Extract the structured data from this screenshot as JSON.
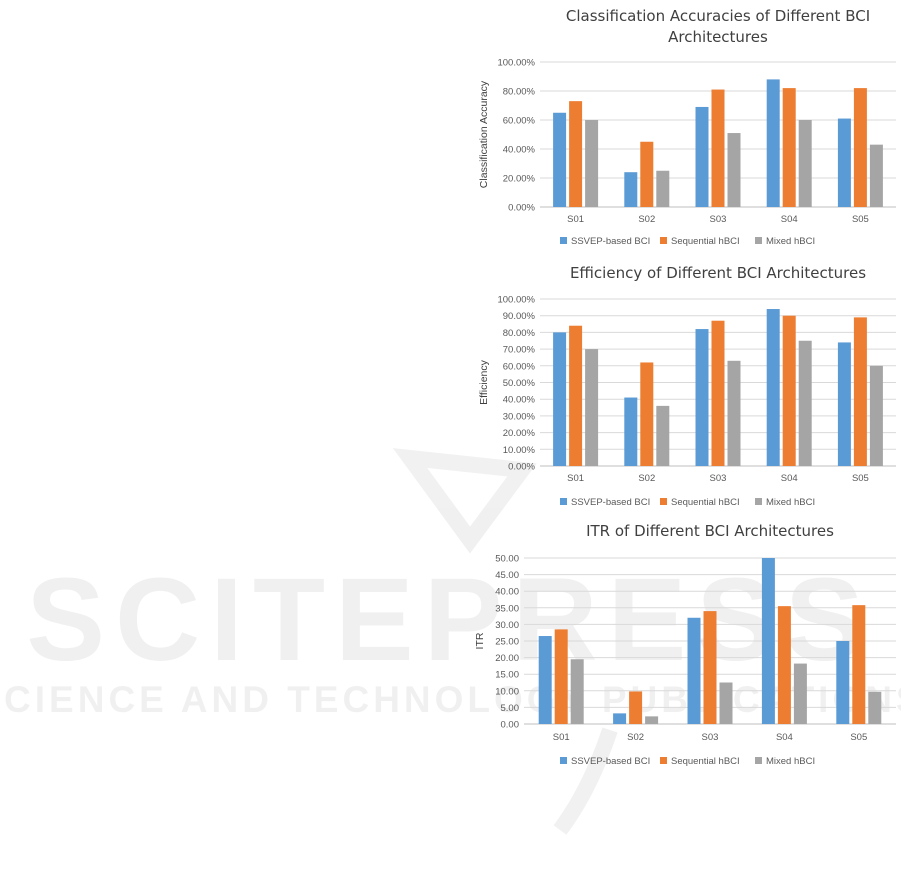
{
  "watermark": {
    "main": "SCITEPRESS",
    "sub": "SCIENCE AND TECHNOLOGY PUBLICATIONS"
  },
  "legend": [
    "SSVEP-based BCI",
    "Sequential hBCI",
    "Mixed hBCI"
  ],
  "colors": {
    "ssvep": "#5b9bd5",
    "sequential": "#ed7d31",
    "mixed": "#a5a5a5",
    "grid": "#d9d9d9",
    "axis": "#bfbfbf"
  },
  "chart_data": [
    {
      "type": "bar",
      "title": [
        "Classification Accuracies of Different BCI",
        "Architectures"
      ],
      "ylabel": "Classification Accuracy",
      "xlabel": "",
      "categories": [
        "S01",
        "S02",
        "S03",
        "S04",
        "S05"
      ],
      "yticks": [
        "0.00%",
        "20.00%",
        "40.00%",
        "60.00%",
        "80.00%",
        "100.00%"
      ],
      "ylim": [
        0,
        100
      ],
      "grid": true,
      "legend_position": "bottom",
      "series": [
        {
          "name": "SSVEP-based BCI",
          "values": [
            65,
            24,
            69,
            88,
            61
          ]
        },
        {
          "name": "Sequential hBCI",
          "values": [
            73,
            45,
            81,
            82,
            82
          ]
        },
        {
          "name": "Mixed hBCI",
          "values": [
            60,
            25,
            51,
            60,
            43
          ]
        }
      ]
    },
    {
      "type": "bar",
      "title": [
        "Efficiency of Different BCI Architectures"
      ],
      "ylabel": "Efficiency",
      "xlabel": "",
      "categories": [
        "S01",
        "S02",
        "S03",
        "S04",
        "S05"
      ],
      "yticks": [
        "0.00%",
        "10.00%",
        "20.00%",
        "30.00%",
        "40.00%",
        "50.00%",
        "60.00%",
        "70.00%",
        "80.00%",
        "90.00%",
        "100.00%"
      ],
      "ylim": [
        0,
        100
      ],
      "grid": true,
      "legend_position": "bottom",
      "series": [
        {
          "name": "SSVEP-based BCI",
          "values": [
            80,
            41,
            82,
            94,
            74
          ]
        },
        {
          "name": "Sequential hBCI",
          "values": [
            84,
            62,
            87,
            90,
            89
          ]
        },
        {
          "name": "Mixed hBCI",
          "values": [
            70,
            36,
            63,
            75,
            60
          ]
        }
      ]
    },
    {
      "type": "bar",
      "title": [
        "ITR of  Different BCI Architectures"
      ],
      "ylabel": "ITR",
      "xlabel": "",
      "categories": [
        "S01",
        "S02",
        "S03",
        "S04",
        "S05"
      ],
      "yticks": [
        "0.00",
        "5.00",
        "10.00",
        "15.00",
        "20.00",
        "25.00",
        "30.00",
        "35.00",
        "40.00",
        "45.00",
        "50.00"
      ],
      "ylim": [
        0,
        50
      ],
      "grid": true,
      "legend_position": "bottom",
      "series": [
        {
          "name": "SSVEP-based BCI",
          "values": [
            26.5,
            3.2,
            32.0,
            50.0,
            25.0
          ]
        },
        {
          "name": "Sequential hBCI",
          "values": [
            28.5,
            9.8,
            34.0,
            35.5,
            35.8
          ]
        },
        {
          "name": "Mixed hBCI",
          "values": [
            19.5,
            2.3,
            12.5,
            18.2,
            9.7
          ]
        }
      ]
    }
  ]
}
